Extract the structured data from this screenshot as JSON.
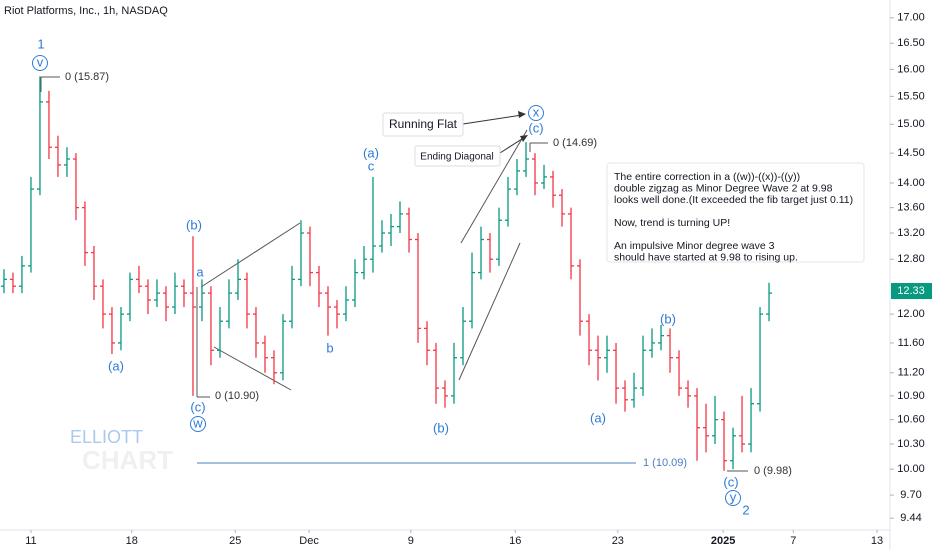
{
  "chart_data": {
    "type": "ohlc",
    "title": "Riot Platforms, Inc., 1h, NASDAQ",
    "log": true,
    "grid": false,
    "up_color": "#089981",
    "down_color": "#f23645",
    "open": [
      12.4,
      12.5,
      12.4,
      12.7,
      13.9,
      15.4,
      14.6,
      14.3,
      14.4,
      13.6,
      12.9,
      12.4,
      12.0,
      11.6,
      12.0,
      12.5,
      12.4,
      12.2,
      12.3,
      12.1,
      12.4,
      12.3,
      12.1,
      12.3,
      11.5,
      11.9,
      12.3,
      12.5,
      12.0,
      11.6,
      11.4,
      11.2,
      11.9,
      12.5,
      13.2,
      12.6,
      12.3,
      12.1,
      12.0,
      12.2,
      12.6,
      12.8,
      13.0,
      13.2,
      13.3,
      13.5,
      13.1,
      11.8,
      11.5,
      11.0,
      10.9,
      11.4,
      11.9,
      12.6,
      13.1,
      12.8,
      13.4,
      13.9,
      14.2,
      14.4,
      14.0,
      14.1,
      13.8,
      13.5,
      12.7,
      11.9,
      11.5,
      11.4,
      11.5,
      11.0,
      10.85,
      11.0,
      11.5,
      11.6,
      11.7,
      11.4,
      11.0,
      10.9,
      10.5,
      10.4,
      10.6,
      10.1,
      10.4,
      10.3,
      10.8,
      12.0
    ],
    "high": [
      12.65,
      12.6,
      12.85,
      14.1,
      15.87,
      15.6,
      14.8,
      14.6,
      14.5,
      13.7,
      13.0,
      12.5,
      12.1,
      12.1,
      12.6,
      12.7,
      12.5,
      12.5,
      12.4,
      12.6,
      12.5,
      13.15,
      12.5,
      12.4,
      12.1,
      12.5,
      12.8,
      12.6,
      12.1,
      11.7,
      11.5,
      12.0,
      12.7,
      13.4,
      13.3,
      12.7,
      12.4,
      12.2,
      12.4,
      12.8,
      13.0,
      14.1,
      13.4,
      13.5,
      13.7,
      13.6,
      13.2,
      11.9,
      11.6,
      11.1,
      11.6,
      12.1,
      12.9,
      13.3,
      13.2,
      13.6,
      14.1,
      14.4,
      14.69,
      14.5,
      14.3,
      14.2,
      13.9,
      13.6,
      12.8,
      12.0,
      11.7,
      11.7,
      11.6,
      11.1,
      11.2,
      11.7,
      11.8,
      11.85,
      11.8,
      11.5,
      11.1,
      11.0,
      10.8,
      10.9,
      10.7,
      10.5,
      10.9,
      11.0,
      12.1,
      12.45
    ],
    "low": [
      12.3,
      12.3,
      12.3,
      12.6,
      13.8,
      14.4,
      14.1,
      14.1,
      13.4,
      12.7,
      12.2,
      11.8,
      11.45,
      11.5,
      11.9,
      12.3,
      12.0,
      12.1,
      11.9,
      12.0,
      12.1,
      10.9,
      11.9,
      11.3,
      11.4,
      11.8,
      12.2,
      11.8,
      11.4,
      11.2,
      11.05,
      11.1,
      11.8,
      12.4,
      12.4,
      12.1,
      11.7,
      11.8,
      11.9,
      12.1,
      12.5,
      12.6,
      12.9,
      13.0,
      13.2,
      12.9,
      11.6,
      11.3,
      10.8,
      10.75,
      10.8,
      11.3,
      11.8,
      12.5,
      12.6,
      12.7,
      13.3,
      13.8,
      14.1,
      13.8,
      13.9,
      13.6,
      13.3,
      12.5,
      11.7,
      11.3,
      11.1,
      11.2,
      10.8,
      10.7,
      10.75,
      10.9,
      11.4,
      11.5,
      11.2,
      10.9,
      10.75,
      10.1,
      10.2,
      10.3,
      9.98,
      10.0,
      10.2,
      10.2,
      10.7,
      11.9
    ],
    "close": [
      12.5,
      12.4,
      12.7,
      13.9,
      15.4,
      14.6,
      14.3,
      14.4,
      13.6,
      12.9,
      12.4,
      12.0,
      11.6,
      12.0,
      12.5,
      12.4,
      12.2,
      12.3,
      12.1,
      12.4,
      12.3,
      12.1,
      12.3,
      11.5,
      11.9,
      12.3,
      12.5,
      12.0,
      11.6,
      11.4,
      11.2,
      11.9,
      12.5,
      13.2,
      12.6,
      12.3,
      12.1,
      12.0,
      12.2,
      12.6,
      12.8,
      13.0,
      13.2,
      13.3,
      13.5,
      13.1,
      11.8,
      11.5,
      11.0,
      10.9,
      11.4,
      11.9,
      12.6,
      13.1,
      12.8,
      13.4,
      13.9,
      14.2,
      14.4,
      14.0,
      14.1,
      13.8,
      13.5,
      12.7,
      11.9,
      11.5,
      11.4,
      11.5,
      11.0,
      10.85,
      11.0,
      11.5,
      11.6,
      11.7,
      11.4,
      11.0,
      10.9,
      10.5,
      10.4,
      10.6,
      10.1,
      10.4,
      10.3,
      10.8,
      12.0,
      12.3
    ],
    "xlim": [
      -0.44,
      98.44
    ],
    "xticks": [
      {
        "value": 3,
        "label": "11"
      },
      {
        "value": 14.2,
        "label": "18"
      },
      {
        "value": 25.7,
        "label": "25"
      },
      {
        "value": 33.9,
        "label": "Dec"
      },
      {
        "value": 45.2,
        "label": "9"
      },
      {
        "value": 56.8,
        "label": "16"
      },
      {
        "value": 68.2,
        "label": "23"
      },
      {
        "value": 79.9,
        "label": "2025"
      },
      {
        "value": 87.7,
        "label": "7"
      },
      {
        "value": 97,
        "label": "13"
      }
    ],
    "ylim": [
      9.31,
      17.36
    ],
    "yticks": [
      {
        "value": 17,
        "label": "17.00"
      },
      {
        "value": 16.5,
        "label": "16.50"
      },
      {
        "value": 16,
        "label": "16.00"
      },
      {
        "value": 15.5,
        "label": "15.50"
      },
      {
        "value": 15,
        "label": "15.00"
      },
      {
        "value": 14.5,
        "label": "14.50"
      },
      {
        "value": 14,
        "label": "14.00"
      },
      {
        "value": 13.6,
        "label": "13.60"
      },
      {
        "value": 13.2,
        "label": "13.20"
      },
      {
        "value": 12.8,
        "label": "12.80"
      },
      {
        "value": 12,
        "label": "12.00"
      },
      {
        "value": 11.6,
        "label": "11.60"
      },
      {
        "value": 11.2,
        "label": "11.20"
      },
      {
        "value": 10.9,
        "label": "10.90"
      },
      {
        "value": 10.6,
        "label": "10.60"
      },
      {
        "value": 10.3,
        "label": "10.30"
      },
      {
        "value": 10,
        "label": "10.00"
      },
      {
        "value": 9.7,
        "label": "9.70"
      },
      {
        "value": 9.44,
        "label": "9.44"
      }
    ],
    "last_price": {
      "value": 12.33,
      "label": "12.33"
    },
    "annotations": [
      "1",
      "v",
      "0 (15.87)",
      "(a)",
      "(b)",
      "a",
      "(c)",
      "w",
      "0 (10.90)",
      "b",
      "(a)",
      "c",
      "Running Flat",
      "Ending Diagonal",
      "x",
      "(c)",
      "0 (14.69)",
      "(b)",
      "(a)",
      "(b)",
      "1 (10.09)",
      "0 (9.98)",
      "(c)",
      "y",
      "2"
    ],
    "note": {
      "paragraphs": [
        [
          "The entire correction in a ((w))-((x))-((y))",
          "double zigzag as Minor Degree Wave 2 at 9.98",
          "looks well done.(It exceeded the fib target just 0.11)"
        ],
        [
          "Now, trend is turning UP!"
        ],
        [
          "An impulsive Minor degree wave 3",
          "should have started at 9.98 to rising up."
        ]
      ]
    },
    "watermark": [
      "ELLIOTT",
      "CHART"
    ]
  }
}
